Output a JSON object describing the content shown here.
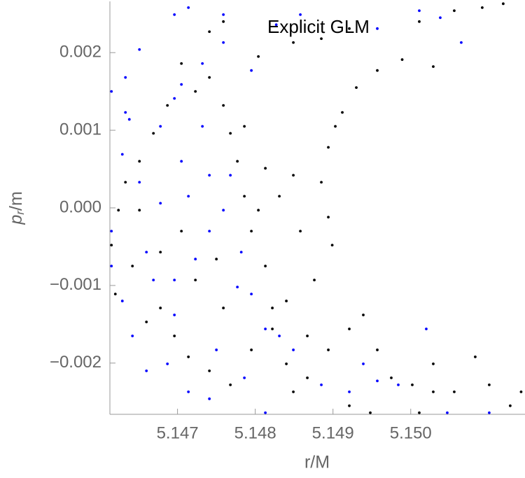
{
  "chart_data": {
    "type": "scatter",
    "title": "Explicit GLM",
    "x_label": "r/M",
    "y_label": {
      "main": "p",
      "sub": "r",
      "rest": "/m"
    },
    "xlim": [
      5.14613,
      5.15147
    ],
    "ylim": [
      -0.00266,
      0.00266
    ],
    "xticks": [
      5.147,
      5.148,
      5.149,
      {
        "value": 5.15,
        "label": "5.150"
      }
    ],
    "yticks": [
      {
        "value": -0.002,
        "label": "−0.002"
      },
      {
        "value": -0.001,
        "label": "−0.001"
      },
      {
        "value": 0,
        "label": "0.000"
      },
      0.001,
      0.002
    ],
    "series": [
      {
        "color": "#000000",
        "x": [
          5.14759,
          5.14741,
          5.14804,
          5.14849,
          5.14885,
          5.14921,
          5.14957,
          5.14989,
          5.15029,
          5.15056,
          5.15092,
          5.15119,
          5.15011,
          5.1493,
          5.14903,
          5.14912,
          5.14894,
          5.14885,
          5.14894,
          5.14899,
          5.14876,
          5.14858,
          5.14849,
          5.14831,
          5.14813,
          5.14804,
          5.14795,
          5.14786,
          5.14777,
          5.14768,
          5.14786,
          5.14759,
          5.14741,
          5.14723,
          5.14705,
          5.14687,
          5.14669,
          5.14651,
          5.14633,
          5.14624,
          5.14615,
          5.1462,
          5.14642,
          5.1466,
          5.14678,
          5.14696,
          5.14714,
          5.14741,
          5.14768,
          5.14795,
          5.14822,
          5.1484,
          5.14867,
          5.14894,
          5.14921,
          5.14939,
          5.14957,
          5.14975,
          5.15002,
          5.15029,
          5.15056,
          5.15083,
          5.15101,
          5.15128,
          5.15142,
          5.14867,
          5.1484,
          5.14813,
          5.14822,
          5.14849,
          5.15029,
          5.15011,
          5.14921,
          5.14948,
          5.14651,
          5.14678,
          5.14705,
          5.14723,
          5.1475,
          5.14759
        ],
        "values": [
          0.0024,
          0.00227,
          0.00195,
          0.00213,
          0.00218,
          0.00231,
          0.00177,
          0.00191,
          0.00182,
          0.00254,
          0.00258,
          0.00263,
          0.0024,
          0.00155,
          0.00105,
          0.00123,
          0.00078,
          0.00033,
          -0.00012,
          -0.00048,
          -0.00093,
          -0.0003,
          0.00042,
          0.00015,
          0.00051,
          -3e-05,
          -0.0003,
          0.00015,
          0.0006,
          0.00096,
          0.00105,
          0.00132,
          0.00168,
          0.0015,
          0.00186,
          0.00132,
          0.00096,
          0.0006,
          0.00033,
          -3e-05,
          -0.00048,
          -0.00111,
          -0.00075,
          -0.00147,
          -0.00129,
          -0.00165,
          -0.00192,
          -0.0021,
          -0.00228,
          -0.00183,
          -0.00156,
          -0.0012,
          -0.00165,
          -0.00183,
          -0.00156,
          -0.00138,
          -0.00183,
          -0.00219,
          -0.00228,
          -0.00201,
          -0.00237,
          -0.00192,
          -0.00228,
          -0.00255,
          -0.00237,
          -0.00219,
          -0.00201,
          -0.00075,
          -0.00129,
          -0.00237,
          -0.00237,
          -0.00264,
          -0.00255,
          -0.00264,
          -3e-05,
          -0.00057,
          -0.0003,
          -0.00093,
          -0.00066,
          -0.00129
        ]
      },
      {
        "color": "#0000ff",
        "x": [
          5.14696,
          5.14714,
          5.14759,
          5.14651,
          5.14633,
          5.14615,
          5.14638,
          5.14651,
          5.14678,
          5.14705,
          5.14732,
          5.14741,
          5.14759,
          5.14782,
          5.14795,
          5.14813,
          5.14831,
          5.14849,
          5.14885,
          5.14921,
          5.14957,
          5.14984,
          5.1502,
          5.15047,
          5.15101,
          5.14615,
          5.14629,
          5.14642,
          5.1466,
          5.14687,
          5.14714,
          5.14741,
          5.14786,
          5.14813,
          5.14696,
          5.14669,
          5.14723,
          5.14741,
          5.14768,
          5.14714,
          5.14696,
          5.14678,
          5.14705,
          5.14732,
          5.14759,
          5.14795,
          5.14957,
          5.15011,
          5.15038,
          5.15065,
          5.14629,
          5.14615,
          5.1466,
          5.14696,
          5.1475,
          5.14777,
          5.14858,
          5.14827,
          5.14939,
          5.14633
        ],
        "values": [
          0.00249,
          0.00258,
          0.00249,
          0.00204,
          0.00168,
          0.0015,
          0.00114,
          0.00033,
          6e-05,
          0.0006,
          0.00105,
          0.00042,
          -3e-05,
          -0.00057,
          -0.00111,
          -0.00156,
          -0.00165,
          -0.00183,
          -0.00228,
          -0.00237,
          -0.00223,
          -0.00228,
          -0.00156,
          -0.00264,
          -0.00264,
          -0.00075,
          -0.0012,
          -0.00165,
          -0.0021,
          -0.00201,
          -0.00237,
          -0.00246,
          -0.00219,
          -0.00264,
          -0.00093,
          -0.00093,
          -0.00066,
          -0.0003,
          0.00042,
          0.00015,
          0.00141,
          0.00105,
          0.00159,
          0.00186,
          0.00213,
          0.00177,
          0.00231,
          0.00254,
          0.00245,
          0.00213,
          0.00069,
          -0.0003,
          -0.00057,
          -0.00138,
          -0.00183,
          -0.00102,
          0.00249,
          0.00236,
          -0.00201,
          0.00123
        ]
      }
    ]
  }
}
